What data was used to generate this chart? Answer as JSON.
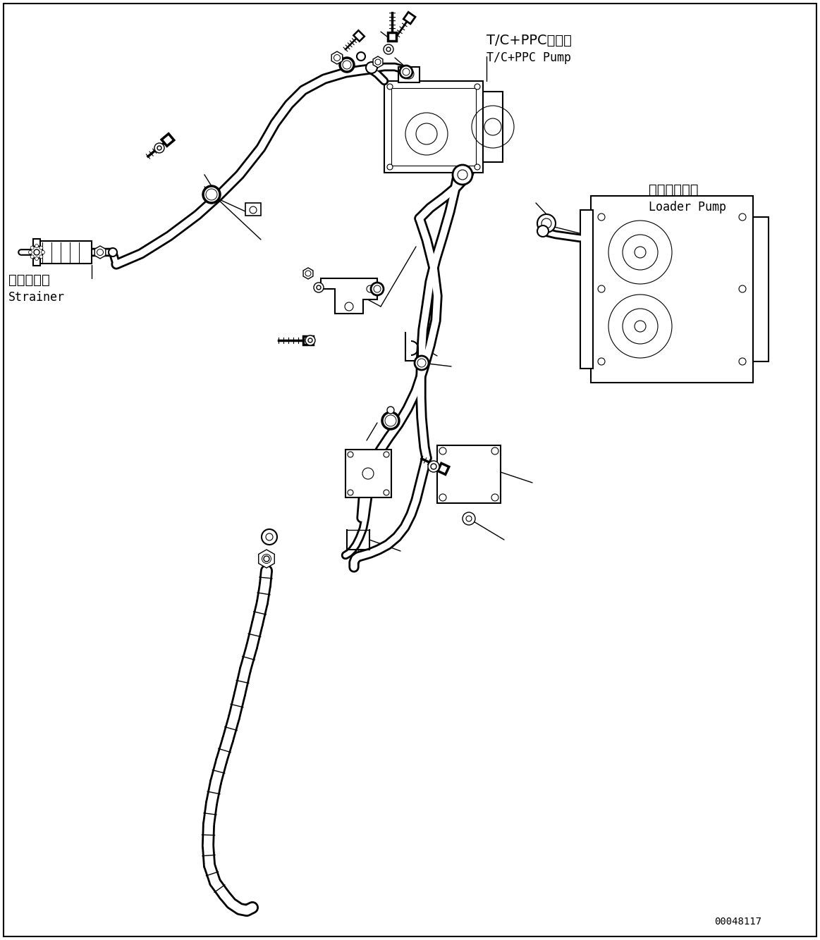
{
  "bg_color": "#ffffff",
  "line_color": "#000000",
  "fig_width": 11.63,
  "fig_height": 13.34,
  "label_tc_pump_jp": "T/C+PPCポンプ",
  "label_tc_pump_en": "T/C+PPC Pump",
  "label_loader_pump_jp": "ローダポンプ",
  "label_loader_pump_en": "Loader Pump",
  "label_strainer_jp": "ストレーナ",
  "label_strainer_en": "Strainer",
  "part_number": "00048117"
}
